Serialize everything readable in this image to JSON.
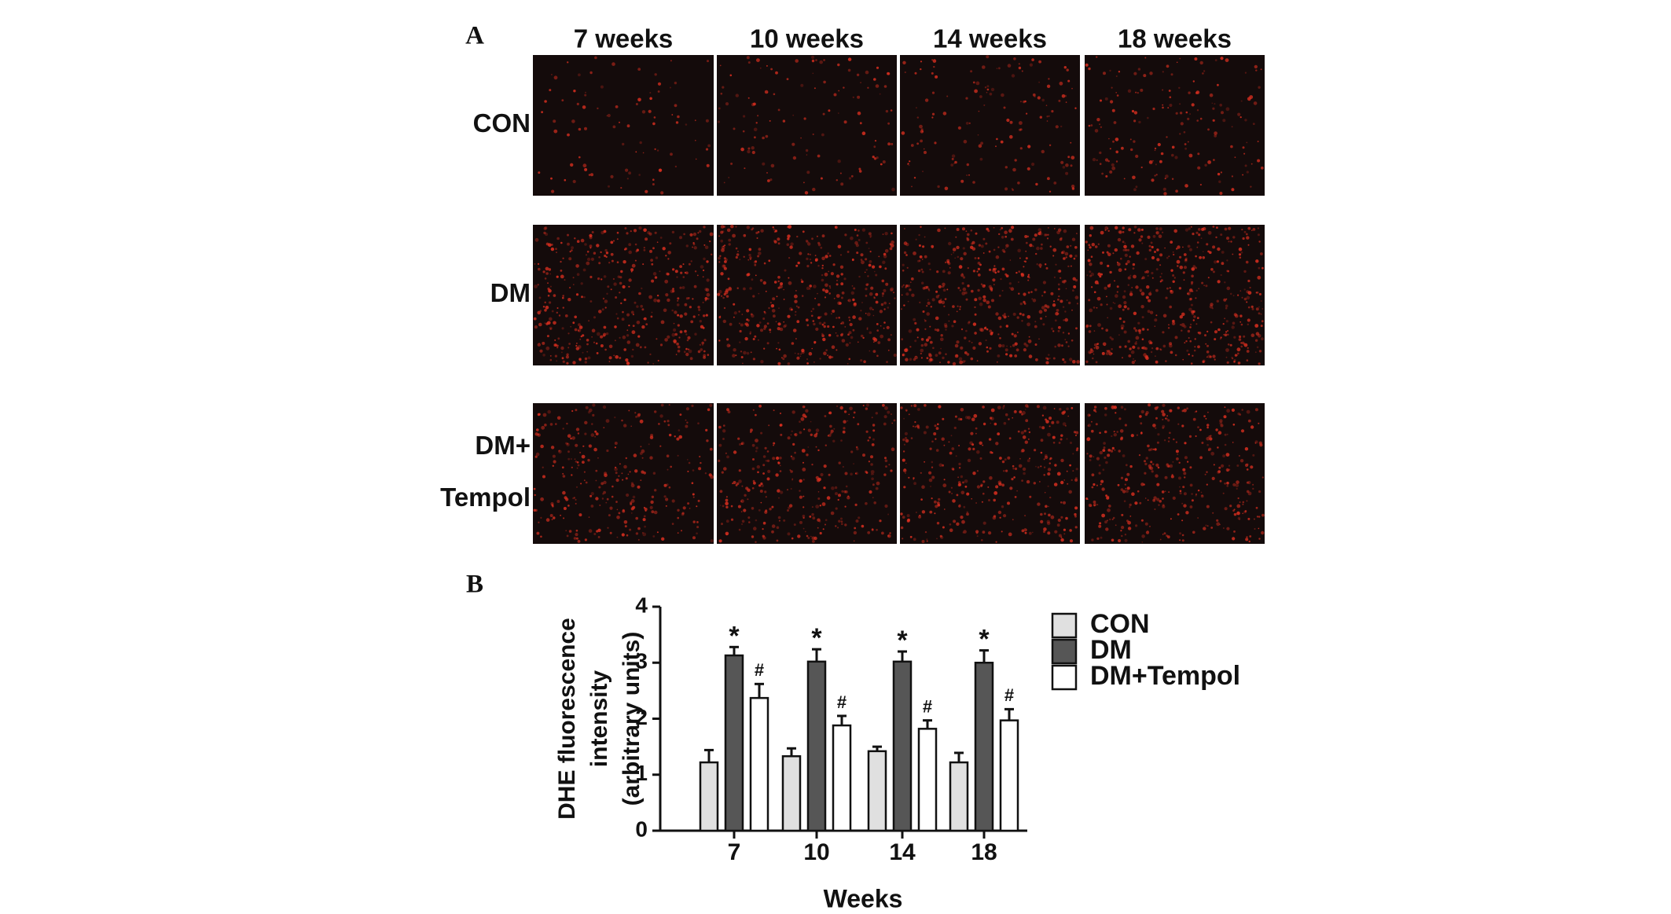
{
  "panel_a": {
    "label": "A",
    "columns": [
      "7 weeks",
      "10 weeks",
      "14 weeks",
      "18 weeks"
    ],
    "rows": [
      [
        "CON"
      ],
      [
        "DM"
      ],
      [
        "DM+",
        "Tempol"
      ]
    ]
  },
  "panel_b": {
    "label": "B"
  },
  "chart_data": {
    "type": "bar",
    "ylabel": [
      "DHE fluorescence",
      "intensity",
      "(arbitrary units)"
    ],
    "xlabel": "Weeks",
    "categories": [
      "7",
      "10",
      "14",
      "18"
    ],
    "series": [
      {
        "name": "CON",
        "color": "#e0e0e0",
        "values": [
          1.22,
          1.33,
          1.42,
          1.22
        ],
        "errors": [
          0.22,
          0.14,
          0.08,
          0.17
        ]
      },
      {
        "name": "DM",
        "color": "#565656",
        "values": [
          3.13,
          3.02,
          3.02,
          3.0
        ],
        "errors": [
          0.15,
          0.22,
          0.18,
          0.22
        ],
        "annotations": [
          "*",
          "*",
          "*",
          "*"
        ]
      },
      {
        "name": "DM+Tempol",
        "color": "#ffffff",
        "values": [
          2.37,
          1.88,
          1.82,
          1.97
        ],
        "errors": [
          0.25,
          0.17,
          0.15,
          0.2
        ],
        "annotations": [
          "#",
          "#",
          "#",
          "#"
        ]
      }
    ],
    "ylim": [
      0,
      4
    ],
    "yticks": [
      0,
      1,
      2,
      3,
      4
    ],
    "grid": false,
    "legend": "right"
  }
}
